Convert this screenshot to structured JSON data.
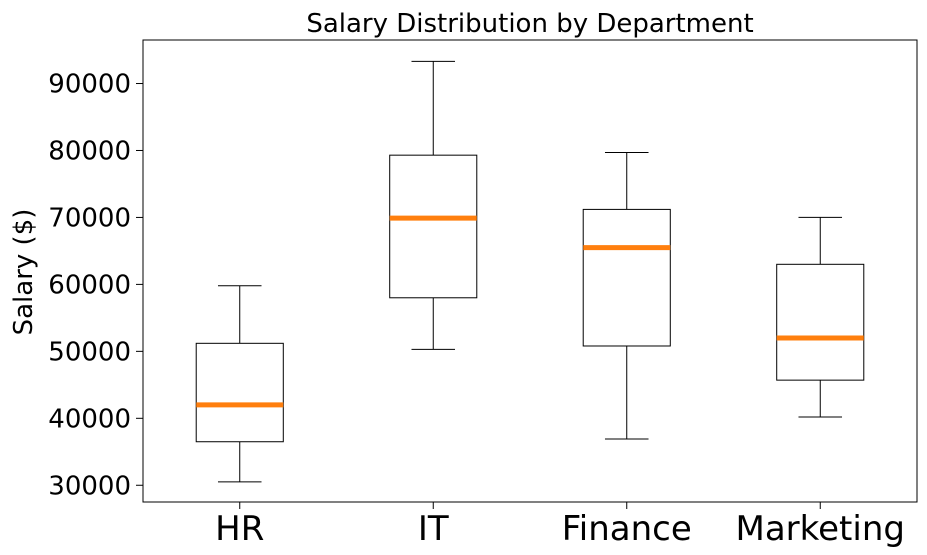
{
  "chart_data": {
    "type": "box",
    "title": "Salary Distribution by Department",
    "xlabel": "",
    "ylabel": "Salary ($)",
    "ylim": [
      27500,
      96500
    ],
    "yticks": [
      30000,
      40000,
      50000,
      60000,
      70000,
      80000,
      90000
    ],
    "categories": [
      "HR",
      "IT",
      "Finance",
      "Marketing"
    ],
    "boxes": [
      {
        "label": "HR",
        "min": 30500,
        "q1": 36500,
        "median": 42000,
        "q3": 51200,
        "max": 59800
      },
      {
        "label": "IT",
        "min": 50300,
        "q1": 58000,
        "median": 69900,
        "q3": 79300,
        "max": 93300
      },
      {
        "label": "Finance",
        "min": 36900,
        "q1": 50800,
        "median": 65500,
        "q3": 71200,
        "max": 79700
      },
      {
        "label": "Marketing",
        "min": 40200,
        "q1": 45700,
        "median": 52000,
        "q3": 63000,
        "max": 70000
      }
    ],
    "median_color": "#ff7f0e",
    "box_color": "#000000",
    "grid": false,
    "legend": "none"
  }
}
